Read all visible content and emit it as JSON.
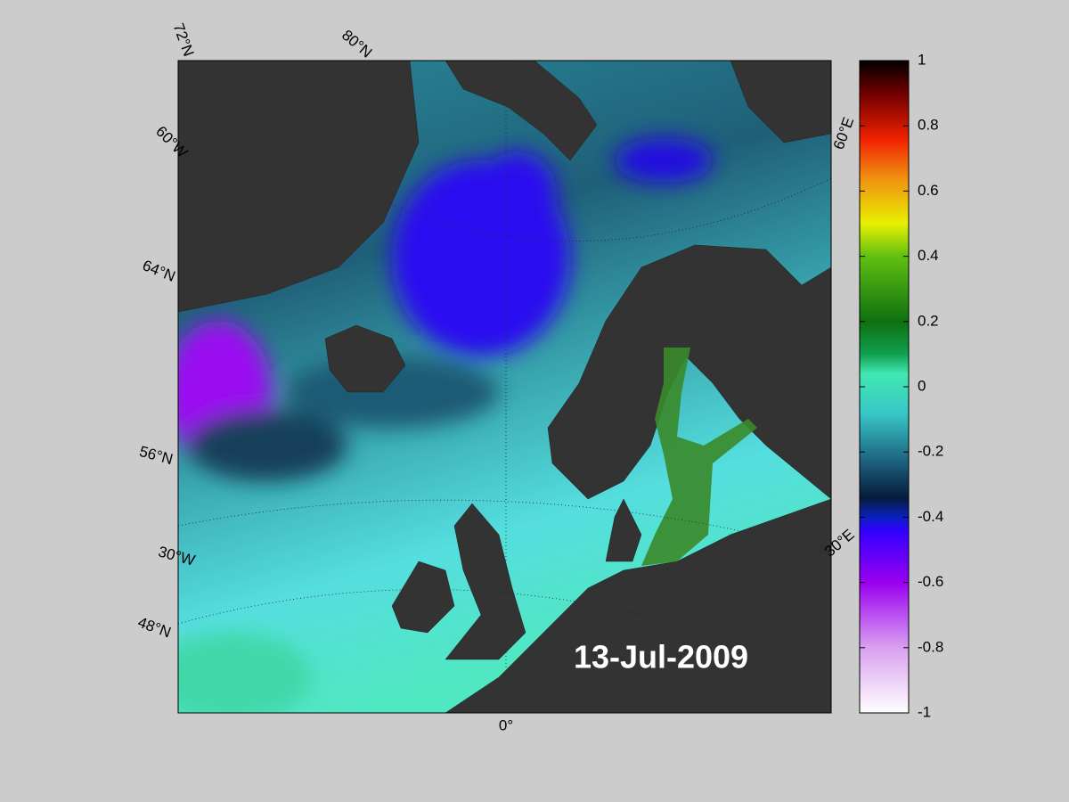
{
  "map": {
    "date_label": "13-Jul-2009",
    "graticule_labels": [
      "72°N",
      "80°N",
      "60°W",
      "64°N",
      "56°N",
      "30°W",
      "48°N",
      "0°",
      "60°E",
      "30°E"
    ]
  },
  "colorbar": {
    "clim": [
      -1,
      1
    ],
    "ticks": [
      -1,
      -0.8,
      -0.6,
      -0.4,
      -0.2,
      0,
      0.2,
      0.4,
      0.6,
      0.8,
      1
    ]
  }
}
